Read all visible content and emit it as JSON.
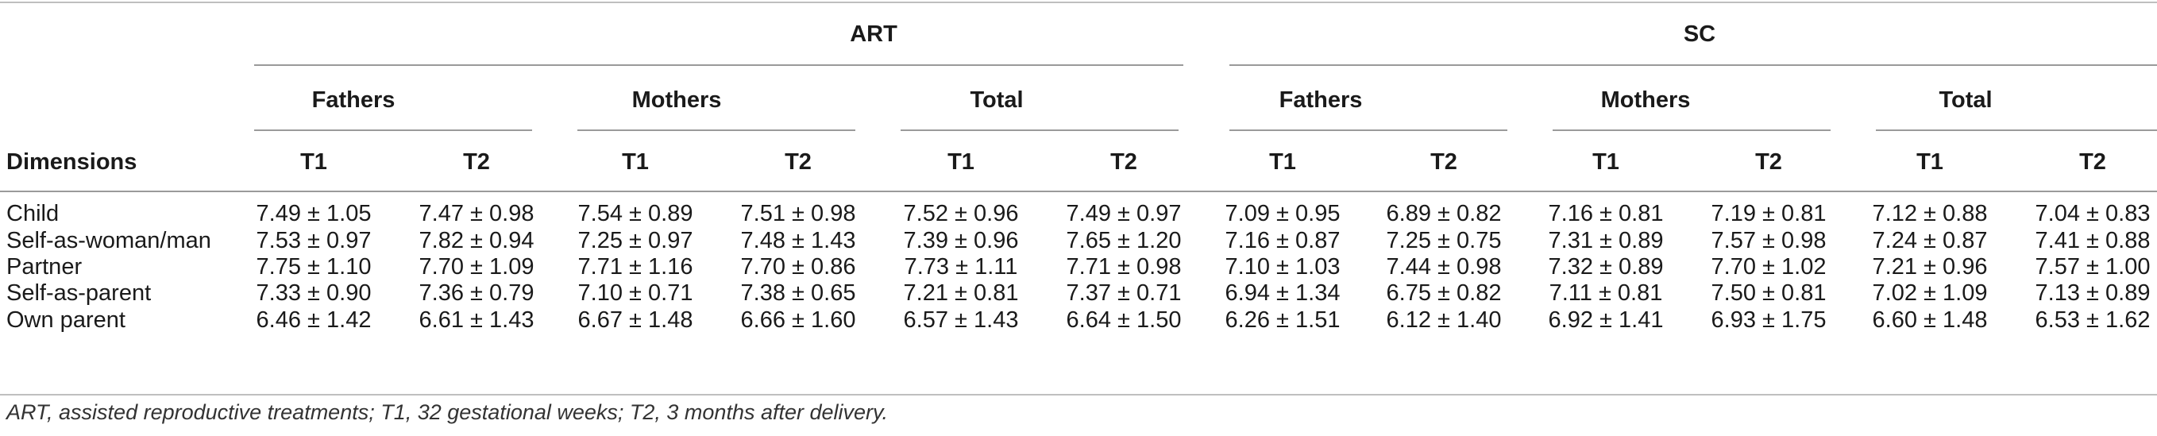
{
  "groups": [
    "ART",
    "SC"
  ],
  "subgroups": [
    "Fathers",
    "Mothers",
    "Total",
    "Fathers",
    "Mothers",
    "Total"
  ],
  "dimensions_header": "Dimensions",
  "timepoints": [
    "T1",
    "T2",
    "T1",
    "T2",
    "T1",
    "T2",
    "T1",
    "T2",
    "T1",
    "T2",
    "T1",
    "T2"
  ],
  "rows": [
    {
      "label": "Child",
      "values": [
        "7.49 ± 1.05",
        "7.47 ± 0.98",
        "7.54 ± 0.89",
        "7.51 ± 0.98",
        "7.52 ± 0.96",
        "7.49 ± 0.97",
        "7.09 ± 0.95",
        "6.89 ± 0.82",
        "7.16 ± 0.81",
        "7.19 ± 0.81",
        "7.12 ± 0.88",
        "7.04 ± 0.83"
      ]
    },
    {
      "label": "Self-as-woman/man",
      "values": [
        "7.53 ± 0.97",
        "7.82 ± 0.94",
        "7.25 ± 0.97",
        "7.48 ± 1.43",
        "7.39 ± 0.96",
        "7.65 ± 1.20",
        "7.16 ± 0.87",
        "7.25 ± 0.75",
        "7.31 ± 0.89",
        "7.57 ± 0.98",
        "7.24 ± 0.87",
        "7.41 ± 0.88"
      ]
    },
    {
      "label": "Partner",
      "values": [
        "7.75 ± 1.10",
        "7.70 ± 1.09",
        "7.71 ± 1.16",
        "7.70 ± 0.86",
        "7.73 ± 1.11",
        "7.71 ± 0.98",
        "7.10 ± 1.03",
        "7.44 ± 0.98",
        "7.32 ± 0.89",
        "7.70 ± 1.02",
        "7.21 ± 0.96",
        "7.57 ± 1.00"
      ]
    },
    {
      "label": "Self-as-parent",
      "values": [
        "7.33 ± 0.90",
        "7.36 ± 0.79",
        "7.10 ± 0.71",
        "7.38 ± 0.65",
        "7.21 ± 0.81",
        "7.37 ± 0.71",
        "6.94 ± 1.34",
        "6.75 ± 0.82",
        "7.11 ± 0.81",
        "7.50 ± 0.81",
        "7.02 ± 1.09",
        "7.13 ± 0.89"
      ]
    },
    {
      "label": "Own parent",
      "values": [
        "6.46 ± 1.42",
        "6.61 ± 1.43",
        "6.67 ± 1.48",
        "6.66 ± 1.60",
        "6.57 ± 1.43",
        "6.64 ± 1.50",
        "6.26 ± 1.51",
        "6.12 ± 1.40",
        "6.92 ± 1.41",
        "6.93 ± 1.75",
        "6.60 ± 1.48",
        "6.53 ± 1.62"
      ]
    }
  ],
  "footnote": "ART, assisted reproductive treatments; T1, 32 gestational weeks; T2, 3 months after delivery."
}
